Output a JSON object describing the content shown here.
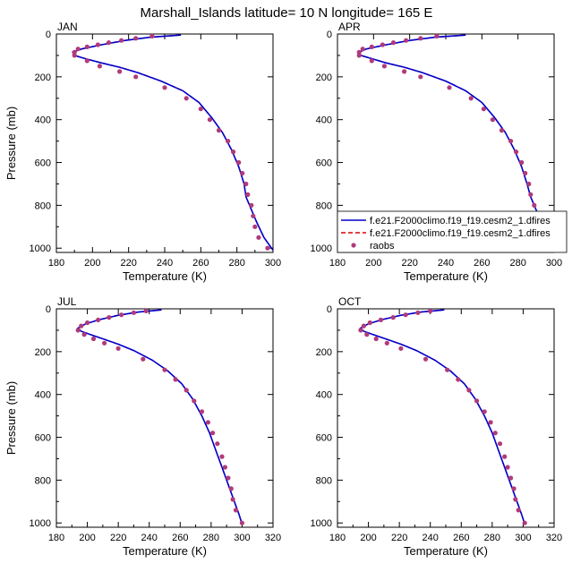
{
  "title": "Marshall_Islands  latitude= 10 N longitude= 165 E",
  "colors": {
    "model1": "#0000cc",
    "model2": "#dd0000",
    "obs": "#b03a7a"
  },
  "legend": {
    "entries": [
      "f.e21.F2000climo.f19_f19.cesm2_1.dfires",
      "f.e21.F2000climo.f19_f19.cesm2_1.dfires",
      "raobs"
    ]
  },
  "chart_data": [
    {
      "type": "line",
      "label": "JAN",
      "xlabel": "Temperature (K)",
      "ylabel": "Pressure (mb)",
      "xlim": [
        180,
        300
      ],
      "ylim": [
        1020,
        0
      ],
      "xticks": [
        180,
        200,
        220,
        240,
        260,
        280,
        300
      ],
      "yticks": [
        0,
        200,
        400,
        600,
        800,
        1000
      ],
      "model_profile": [
        [
          249,
          5
        ],
        [
          232,
          15
        ],
        [
          218,
          30
        ],
        [
          205,
          50
        ],
        [
          194,
          70
        ],
        [
          189,
          85
        ],
        [
          190,
          100
        ],
        [
          196,
          115
        ],
        [
          205,
          135
        ],
        [
          215,
          155
        ],
        [
          225,
          180
        ],
        [
          238,
          220
        ],
        [
          250,
          265
        ],
        [
          259,
          320
        ],
        [
          266,
          390
        ],
        [
          272,
          460
        ],
        [
          277,
          540
        ],
        [
          281,
          620
        ],
        [
          284,
          700
        ],
        [
          285,
          760
        ],
        [
          287,
          800
        ],
        [
          291,
          880
        ],
        [
          295,
          950
        ],
        [
          300,
          1010
        ]
      ],
      "obs_points": [
        [
          233,
          10
        ],
        [
          224,
          20
        ],
        [
          216,
          30
        ],
        [
          209,
          40
        ],
        [
          203,
          50
        ],
        [
          197,
          60
        ],
        [
          192,
          70
        ],
        [
          190,
          85
        ],
        [
          190,
          100
        ],
        [
          197,
          125
        ],
        [
          204,
          150
        ],
        [
          215,
          175
        ],
        [
          224,
          200
        ],
        [
          240,
          250
        ],
        [
          252,
          300
        ],
        [
          260,
          350
        ],
        [
          265,
          400
        ],
        [
          270,
          450
        ],
        [
          275,
          500
        ],
        [
          278,
          550
        ],
        [
          281,
          600
        ],
        [
          283,
          650
        ],
        [
          285,
          700
        ],
        [
          286,
          750
        ],
        [
          288,
          800
        ],
        [
          289,
          850
        ],
        [
          290,
          900
        ],
        [
          292,
          950
        ],
        [
          297,
          1000
        ]
      ]
    },
    {
      "type": "line",
      "label": "APR",
      "xlabel": "Temperature (K)",
      "ylabel": "",
      "xlim": [
        180,
        300
      ],
      "ylim": [
        1020,
        0
      ],
      "xticks": [
        180,
        200,
        220,
        240,
        260,
        280,
        300
      ],
      "yticks": [
        0,
        200,
        400,
        600,
        800,
        1000
      ],
      "model_profile": [
        [
          251,
          5
        ],
        [
          234,
          15
        ],
        [
          220,
          30
        ],
        [
          207,
          50
        ],
        [
          196,
          70
        ],
        [
          192,
          85
        ],
        [
          193,
          100
        ],
        [
          199,
          115
        ],
        [
          207,
          135
        ],
        [
          217,
          155
        ],
        [
          227,
          180
        ],
        [
          240,
          220
        ],
        [
          251,
          265
        ],
        [
          260,
          320
        ],
        [
          267,
          390
        ],
        [
          273,
          460
        ],
        [
          278,
          540
        ],
        [
          282,
          620
        ],
        [
          285,
          700
        ],
        [
          287,
          760
        ],
        [
          289,
          800
        ],
        [
          293,
          880
        ],
        [
          296,
          950
        ],
        [
          300,
          1010
        ]
      ],
      "obs_points": [
        [
          235,
          10
        ],
        [
          226,
          20
        ],
        [
          218,
          30
        ],
        [
          211,
          40
        ],
        [
          205,
          50
        ],
        [
          199,
          60
        ],
        [
          194,
          70
        ],
        [
          192,
          85
        ],
        [
          192,
          100
        ],
        [
          199,
          125
        ],
        [
          206,
          150
        ],
        [
          217,
          175
        ],
        [
          226,
          200
        ],
        [
          242,
          250
        ],
        [
          254,
          300
        ],
        [
          261,
          350
        ],
        [
          266,
          400
        ],
        [
          271,
          450
        ],
        [
          276,
          500
        ],
        [
          279,
          550
        ],
        [
          282,
          600
        ],
        [
          284,
          650
        ],
        [
          286,
          700
        ],
        [
          287,
          750
        ],
        [
          289,
          800
        ],
        [
          290,
          850
        ],
        [
          291,
          900
        ],
        [
          293,
          950
        ],
        [
          298,
          1000
        ]
      ]
    },
    {
      "type": "line",
      "label": "JUL",
      "xlabel": "Temperature (K)",
      "ylabel": "Pressure (mb)",
      "xlim": [
        180,
        320
      ],
      "ylim": [
        1020,
        0
      ],
      "xticks": [
        180,
        200,
        220,
        240,
        260,
        280,
        300,
        320
      ],
      "yticks": [
        0,
        200,
        400,
        600,
        800,
        1000
      ],
      "model_profile": [
        [
          248,
          5
        ],
        [
          233,
          15
        ],
        [
          220,
          30
        ],
        [
          208,
          50
        ],
        [
          199,
          70
        ],
        [
          194,
          90
        ],
        [
          196,
          105
        ],
        [
          202,
          120
        ],
        [
          210,
          140
        ],
        [
          220,
          165
        ],
        [
          230,
          195
        ],
        [
          242,
          240
        ],
        [
          252,
          290
        ],
        [
          261,
          350
        ],
        [
          268,
          420
        ],
        [
          274,
          500
        ],
        [
          279,
          580
        ],
        [
          283,
          660
        ],
        [
          287,
          740
        ],
        [
          291,
          820
        ],
        [
          295,
          900
        ],
        [
          298,
          960
        ],
        [
          300,
          1005
        ]
      ],
      "obs_points": [
        [
          238,
          10
        ],
        [
          230,
          18
        ],
        [
          222,
          28
        ],
        [
          214,
          40
        ],
        [
          207,
          52
        ],
        [
          200,
          65
        ],
        [
          196,
          80
        ],
        [
          194,
          100
        ],
        [
          198,
          120
        ],
        [
          204,
          140
        ],
        [
          211,
          160
        ],
        [
          220,
          185
        ],
        [
          236,
          235
        ],
        [
          250,
          285
        ],
        [
          257,
          330
        ],
        [
          264,
          380
        ],
        [
          269,
          430
        ],
        [
          274,
          480
        ],
        [
          278,
          530
        ],
        [
          281,
          580
        ],
        [
          284,
          630
        ],
        [
          287,
          690
        ],
        [
          289,
          740
        ],
        [
          291,
          790
        ],
        [
          293,
          840
        ],
        [
          294,
          890
        ],
        [
          296,
          940
        ],
        [
          300,
          1000
        ]
      ]
    },
    {
      "type": "line",
      "label": "OCT",
      "xlabel": "Temperature (K)",
      "ylabel": "",
      "xlim": [
        180,
        320
      ],
      "ylim": [
        1020,
        0
      ],
      "xticks": [
        180,
        200,
        220,
        240,
        260,
        280,
        300,
        320
      ],
      "yticks": [
        0,
        200,
        400,
        600,
        800,
        1000
      ],
      "model_profile": [
        [
          249,
          5
        ],
        [
          234,
          15
        ],
        [
          221,
          30
        ],
        [
          209,
          50
        ],
        [
          200,
          70
        ],
        [
          195,
          90
        ],
        [
          197,
          105
        ],
        [
          203,
          120
        ],
        [
          211,
          140
        ],
        [
          221,
          165
        ],
        [
          231,
          195
        ],
        [
          243,
          240
        ],
        [
          253,
          290
        ],
        [
          262,
          350
        ],
        [
          269,
          420
        ],
        [
          275,
          500
        ],
        [
          280,
          580
        ],
        [
          284,
          660
        ],
        [
          288,
          740
        ],
        [
          292,
          820
        ],
        [
          296,
          900
        ],
        [
          299,
          960
        ],
        [
          301,
          1005
        ]
      ],
      "obs_points": [
        [
          240,
          10
        ],
        [
          232,
          18
        ],
        [
          224,
          28
        ],
        [
          216,
          40
        ],
        [
          208,
          52
        ],
        [
          201,
          65
        ],
        [
          197,
          80
        ],
        [
          195,
          100
        ],
        [
          199,
          120
        ],
        [
          205,
          140
        ],
        [
          212,
          160
        ],
        [
          221,
          185
        ],
        [
          237,
          235
        ],
        [
          251,
          285
        ],
        [
          258,
          330
        ],
        [
          265,
          380
        ],
        [
          270,
          430
        ],
        [
          275,
          480
        ],
        [
          279,
          530
        ],
        [
          282,
          580
        ],
        [
          285,
          630
        ],
        [
          288,
          690
        ],
        [
          290,
          740
        ],
        [
          292,
          790
        ],
        [
          294,
          840
        ],
        [
          295,
          890
        ],
        [
          297,
          940
        ],
        [
          301,
          1000
        ]
      ]
    }
  ]
}
